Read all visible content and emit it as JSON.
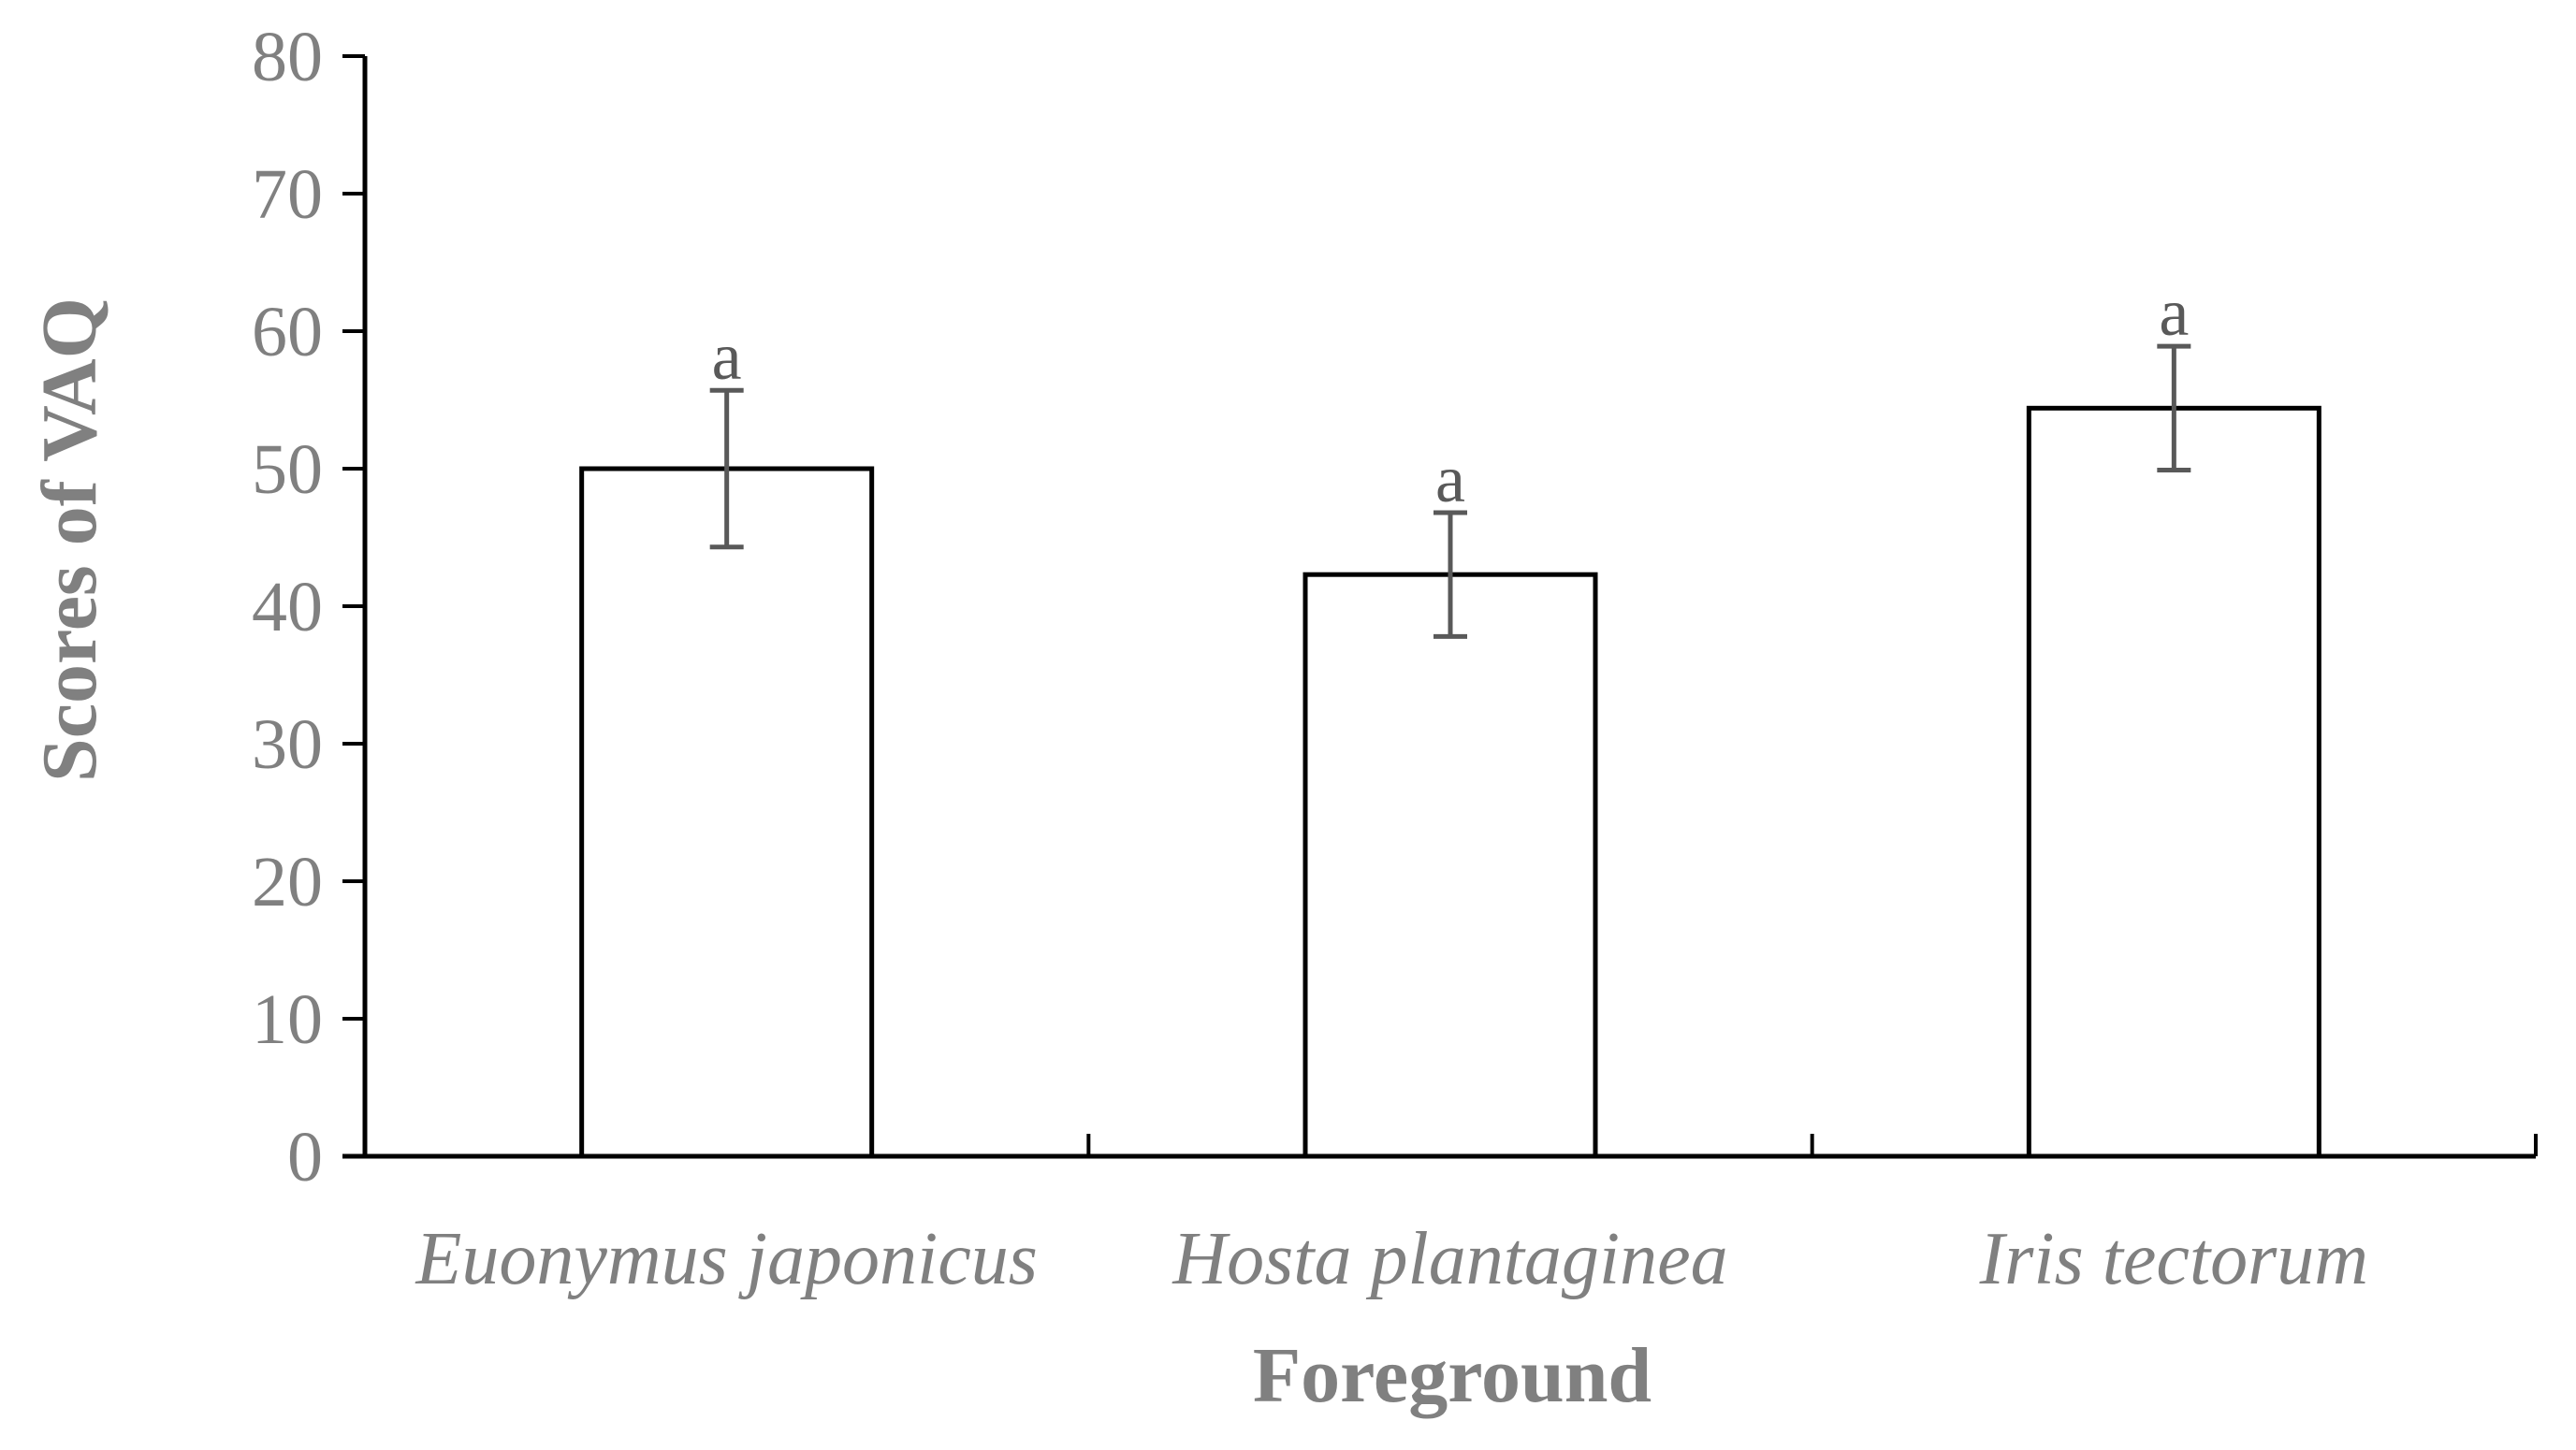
{
  "chart_data": {
    "type": "bar",
    "title": "",
    "xlabel": "Foreground",
    "ylabel": "Scores of VAQ",
    "ylim": [
      0,
      80
    ],
    "yticks": [
      0,
      10,
      20,
      30,
      40,
      50,
      60,
      70,
      80
    ],
    "categories": [
      "Euonymus japonicus",
      "Hosta plantaginea",
      "Iris tectorum"
    ],
    "values": [
      50.0,
      42.3,
      54.4
    ],
    "error": [
      5.7,
      4.5,
      4.5
    ],
    "significance_labels": [
      "a",
      "a",
      "a"
    ],
    "grid": false,
    "legend": "none",
    "colors": {
      "bar_fill": "#ffffff",
      "bar_stroke": "#000000",
      "axis": "#000000",
      "error_bar": "#595959",
      "text": "#808080",
      "sig_text": "#595959"
    }
  }
}
